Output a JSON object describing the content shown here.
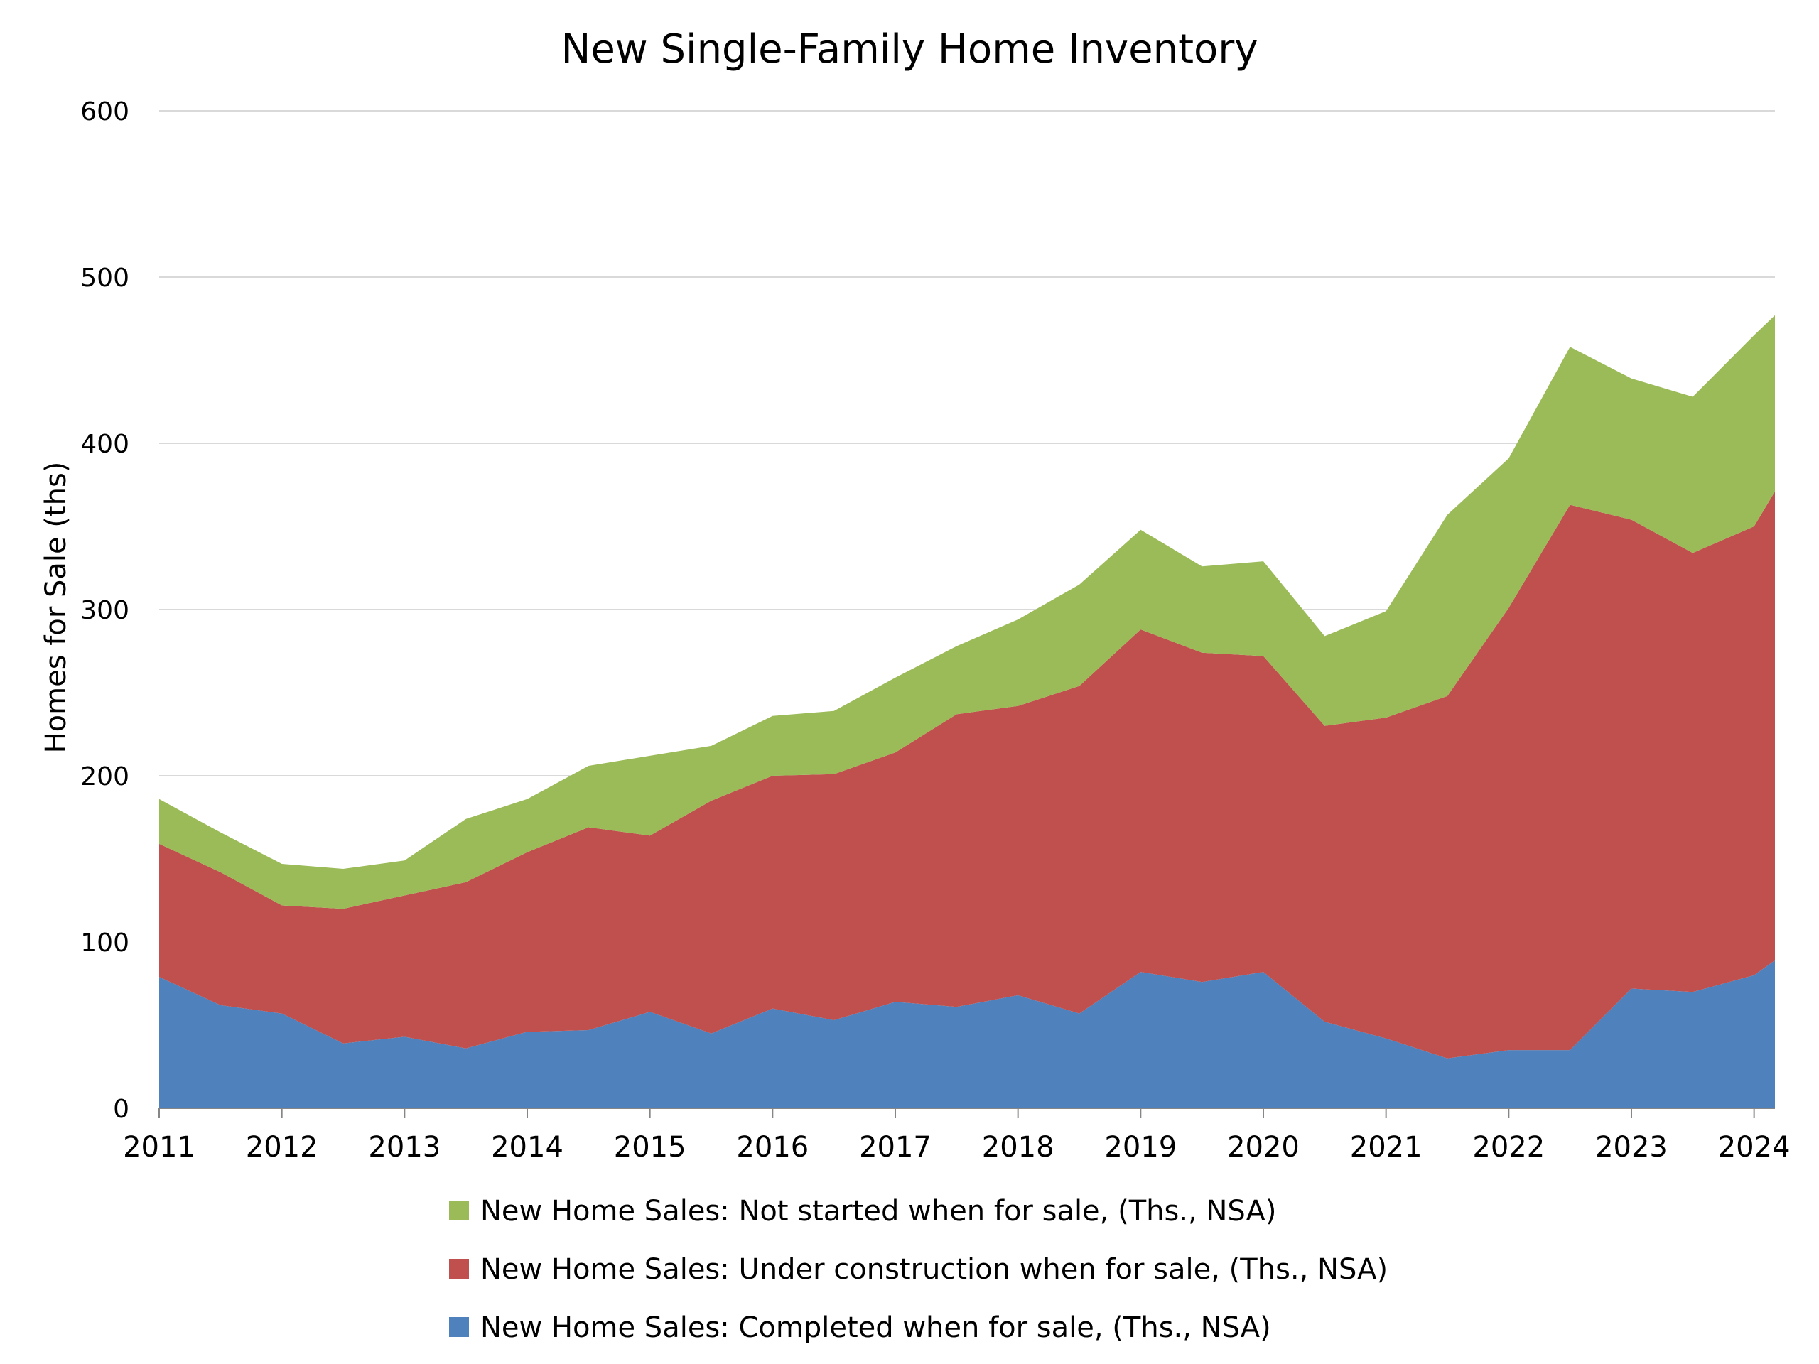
{
  "chart_data": {
    "type": "area",
    "stacked": true,
    "title": "New Single-Family Home Inventory",
    "ylabel": "Homes for Sale (ths)",
    "xlabel": "",
    "ylim": [
      0,
      600
    ],
    "xlim": [
      2011,
      2024.17
    ],
    "y_ticks": [
      "0",
      "100",
      "200",
      "300",
      "400",
      "500",
      "600"
    ],
    "x_ticks": [
      "2011",
      "2012",
      "2013",
      "2014",
      "2015",
      "2016",
      "2017",
      "2018",
      "2019",
      "2020",
      "2021",
      "2022",
      "2023",
      "2024"
    ],
    "grid": "horizontal",
    "legend_position": "bottom",
    "x": [
      2011.0,
      2011.5,
      2012.0,
      2012.5,
      2013.0,
      2013.5,
      2014.0,
      2014.5,
      2015.0,
      2015.5,
      2016.0,
      2016.5,
      2017.0,
      2017.5,
      2018.0,
      2018.5,
      2019.0,
      2019.5,
      2020.0,
      2020.5,
      2021.0,
      2021.5,
      2022.0,
      2022.5,
      2023.0,
      2023.5,
      2024.0,
      2024.17
    ],
    "series": [
      {
        "name": "New Home Sales: Completed when for sale, (Ths., NSA)",
        "color": "#4f81bd",
        "values": [
          79,
          62,
          57,
          39,
          43,
          36,
          46,
          47,
          58,
          45,
          60,
          53,
          64,
          61,
          68,
          57,
          82,
          76,
          82,
          52,
          42,
          30,
          35,
          35,
          72,
          70,
          80,
          89
        ]
      },
      {
        "name": "New Home Sales: Under construction when for sale, (Ths., NSA)",
        "color": "#c0504d",
        "values": [
          80,
          80,
          65,
          81,
          85,
          100,
          108,
          122,
          106,
          140,
          140,
          148,
          150,
          176,
          174,
          197,
          206,
          198,
          190,
          178,
          193,
          218,
          266,
          328,
          282,
          264,
          270,
          282
        ]
      },
      {
        "name": "New Home Sales: Not started when for sale, (Ths., NSA)",
        "color": "#9bbb59",
        "values": [
          27,
          24,
          25,
          24,
          21,
          38,
          32,
          37,
          48,
          33,
          36,
          38,
          45,
          41,
          52,
          61,
          60,
          52,
          57,
          54,
          64,
          109,
          90,
          95,
          85,
          94,
          115,
          106
        ]
      }
    ]
  }
}
